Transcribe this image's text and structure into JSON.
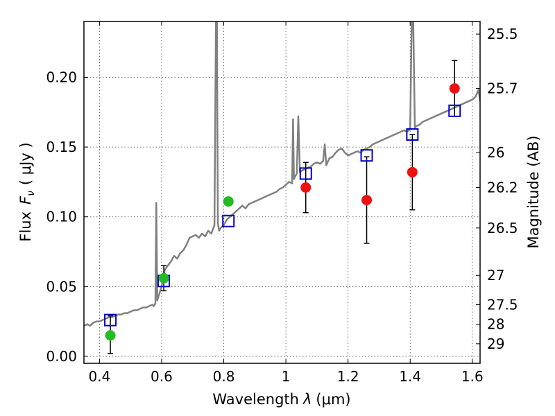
{
  "chart_data": {
    "type": "scatter",
    "xlabel_text": "Wavelength",
    "xlabel_symbol": "λ",
    "xlabel_unit": "(μm)",
    "ylabel_text": "Flux",
    "ylabel_symbol": "F",
    "ylabel_subscript": "ν",
    "ylabel_unit": "( μJy )",
    "y2label": "Magnitude (AB)",
    "xlim": [
      0.35,
      1.625
    ],
    "ylim": [
      -0.005,
      0.24
    ],
    "grid": true,
    "grid_style": "dotted",
    "x_ticks": [
      {
        "value": 0.4,
        "label": "0.4"
      },
      {
        "value": 0.6,
        "label": "0.6"
      },
      {
        "value": 0.8,
        "label": "0.8"
      },
      {
        "value": 1.0,
        "label": "1"
      },
      {
        "value": 1.2,
        "label": "1.2"
      },
      {
        "value": 1.4,
        "label": "1.4"
      },
      {
        "value": 1.6,
        "label": "1.6"
      }
    ],
    "y_ticks": [
      {
        "value": 0.0,
        "label": "0.00"
      },
      {
        "value": 0.05,
        "label": "0.05"
      },
      {
        "value": 0.1,
        "label": "0.10"
      },
      {
        "value": 0.15,
        "label": "0.15"
      },
      {
        "value": 0.2,
        "label": "0.20"
      }
    ],
    "y2_ticks": [
      {
        "label": "25.5",
        "flux": 0.231
      },
      {
        "label": "25.7",
        "flux": 0.192
      },
      {
        "label": "26",
        "flux": 0.146
      },
      {
        "label": "26.2",
        "flux": 0.121
      },
      {
        "label": "26.5",
        "flux": 0.092
      },
      {
        "label": "27",
        "flux": 0.058
      },
      {
        "label": "27.5",
        "flux": 0.037
      },
      {
        "label": "28",
        "flux": 0.023
      },
      {
        "label": "29",
        "flux": 0.009
      }
    ],
    "colors": {
      "spectrum": "#808080",
      "model_marker": "#0000cc",
      "blue_bands": "#22bb22",
      "red_bands": "#ee1111",
      "errorbar": "#000000",
      "grid": "#444444"
    },
    "spectrum": {
      "x": [
        0.35,
        0.36,
        0.37,
        0.38,
        0.39,
        0.4,
        0.41,
        0.42,
        0.43,
        0.44,
        0.45,
        0.46,
        0.47,
        0.48,
        0.49,
        0.5,
        0.51,
        0.52,
        0.53,
        0.54,
        0.55,
        0.56,
        0.57,
        0.575,
        0.58,
        0.583,
        0.586,
        0.59,
        0.6,
        0.61,
        0.62,
        0.63,
        0.64,
        0.65,
        0.66,
        0.67,
        0.68,
        0.69,
        0.7,
        0.71,
        0.72,
        0.73,
        0.74,
        0.75,
        0.76,
        0.77,
        0.775,
        0.778,
        0.781,
        0.785,
        0.79,
        0.8,
        0.81,
        0.82,
        0.83,
        0.84,
        0.85,
        0.86,
        0.87,
        0.88,
        0.89,
        0.9,
        0.91,
        0.92,
        0.93,
        0.94,
        0.95,
        0.96,
        0.97,
        0.98,
        0.99,
        1.0,
        1.01,
        1.02,
        1.023,
        1.026,
        1.03,
        1.035,
        1.04,
        1.045,
        1.05,
        1.06,
        1.07,
        1.08,
        1.09,
        1.1,
        1.11,
        1.12,
        1.125,
        1.13,
        1.14,
        1.15,
        1.16,
        1.17,
        1.18,
        1.19,
        1.2,
        1.21,
        1.22,
        1.23,
        1.24,
        1.25,
        1.26,
        1.27,
        1.28,
        1.29,
        1.3,
        1.31,
        1.32,
        1.33,
        1.34,
        1.35,
        1.36,
        1.37,
        1.38,
        1.39,
        1.4,
        1.405,
        1.41,
        1.415,
        1.42,
        1.43,
        1.44,
        1.45,
        1.46,
        1.47,
        1.48,
        1.49,
        1.5,
        1.51,
        1.52,
        1.53,
        1.54,
        1.55,
        1.56,
        1.57,
        1.58,
        1.59,
        1.6,
        1.61,
        1.62,
        1.625
      ],
      "y": [
        0.022,
        0.023,
        0.022,
        0.024,
        0.025,
        0.025,
        0.026,
        0.027,
        0.028,
        0.028,
        0.029,
        0.03,
        0.03,
        0.031,
        0.031,
        0.032,
        0.033,
        0.033,
        0.034,
        0.035,
        0.035,
        0.036,
        0.037,
        0.036,
        0.038,
        0.11,
        0.04,
        0.043,
        0.05,
        0.062,
        0.065,
        0.068,
        0.072,
        0.07,
        0.074,
        0.076,
        0.08,
        0.085,
        0.086,
        0.087,
        0.085,
        0.088,
        0.086,
        0.09,
        0.088,
        0.094,
        0.24,
        0.24,
        0.096,
        0.09,
        0.092,
        0.094,
        0.098,
        0.1,
        0.102,
        0.104,
        0.106,
        0.108,
        0.106,
        0.109,
        0.11,
        0.111,
        0.112,
        0.113,
        0.114,
        0.115,
        0.116,
        0.117,
        0.118,
        0.12,
        0.121,
        0.123,
        0.125,
        0.124,
        0.17,
        0.127,
        0.129,
        0.131,
        0.172,
        0.132,
        0.133,
        0.134,
        0.135,
        0.136,
        0.138,
        0.139,
        0.138,
        0.14,
        0.152,
        0.137,
        0.142,
        0.143,
        0.146,
        0.148,
        0.149,
        0.146,
        0.144,
        0.145,
        0.146,
        0.147,
        0.146,
        0.148,
        0.149,
        0.15,
        0.152,
        0.153,
        0.154,
        0.155,
        0.156,
        0.157,
        0.158,
        0.159,
        0.16,
        0.161,
        0.162,
        0.161,
        0.163,
        0.24,
        0.24,
        0.164,
        0.165,
        0.166,
        0.168,
        0.169,
        0.17,
        0.171,
        0.172,
        0.173,
        0.174,
        0.175,
        0.176,
        0.177,
        0.178,
        0.179,
        0.18,
        0.181,
        0.182,
        0.183,
        0.184,
        0.186,
        0.191,
        0.183
      ]
    },
    "model_points": {
      "x": [
        0.435,
        0.607,
        0.815,
        1.064,
        1.26,
        1.407,
        1.543
      ],
      "y": [
        0.026,
        0.054,
        0.097,
        0.131,
        0.144,
        0.159,
        0.176
      ]
    },
    "observed_blue": {
      "x": [
        0.435,
        0.607,
        0.815
      ],
      "y": [
        0.015,
        0.056,
        0.111
      ],
      "err": [
        0.0,
        0.009,
        0.0
      ]
    },
    "observed_red": {
      "x": [
        1.064,
        1.26,
        1.407,
        1.543
      ],
      "y": [
        0.121,
        0.112,
        0.132,
        0.192
      ],
      "err": [
        0.018,
        0.031,
        0.027,
        0.02
      ]
    },
    "errorbars_extra": [
      {
        "x": 0.435,
        "low": 0.002,
        "high": 0.029
      }
    ]
  }
}
